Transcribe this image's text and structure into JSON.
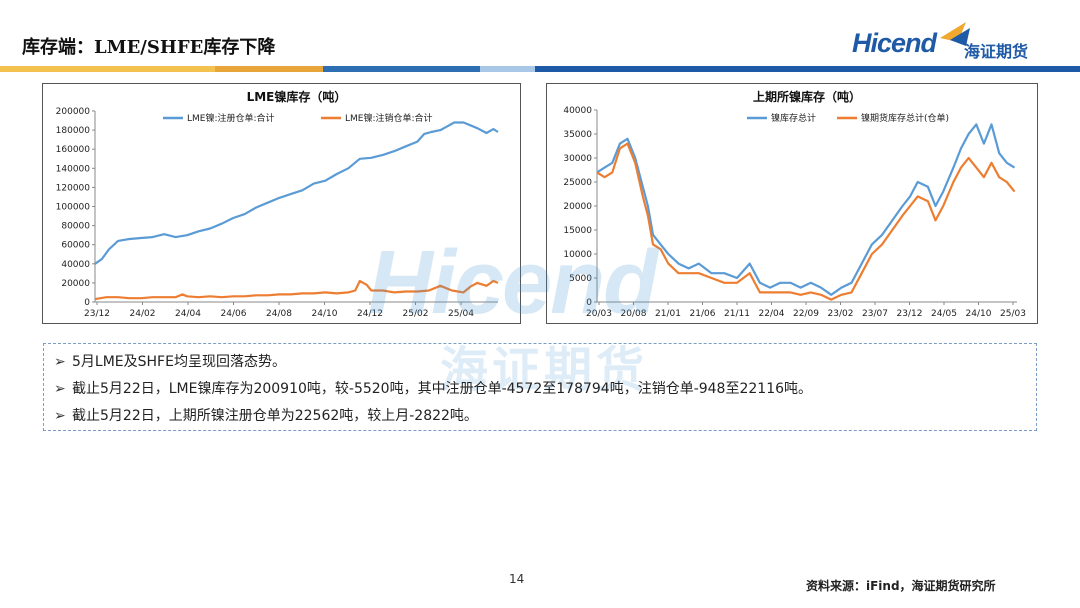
{
  "header": {
    "title": "库存端：LME/SHFE库存下降",
    "strip_colors": [
      "#f0c050",
      "#e8a53a",
      "#2e6fb4",
      "#9dbfe0",
      "#1f5aa6"
    ]
  },
  "logo": {
    "en": "Hicend",
    "cn": "海证期货",
    "color": "#1f5aa6"
  },
  "watermark": {
    "en": "Hicend",
    "cn": "海证期货"
  },
  "notes": [
    "5月LME及SHFE均呈现回落态势。",
    "截止5月22日，LME镍库存为200910吨，较-5520吨，其中注册仓单-4572至178794吨，注销仓单-948至22116吨。",
    "截止5月22日，上期所镍注册仓单为22562吨，较上月-2822吨。"
  ],
  "footer": {
    "page": "14",
    "source": "资料来源：iFind，海证期货研究所"
  },
  "chart_data": [
    {
      "type": "line",
      "title": "LME镍库存（吨）",
      "ylim": [
        0,
        200000
      ],
      "yticks": [
        "0",
        "20000",
        "40000",
        "60000",
        "80000",
        "100000",
        "120000",
        "140000",
        "160000",
        "180000",
        "200000"
      ],
      "xticks": [
        "23/12",
        "24/02",
        "24/04",
        "24/06",
        "24/08",
        "24/10",
        "24/12",
        "25/02",
        "25/04"
      ],
      "xrange": [
        0,
        17.5
      ],
      "legend": "top",
      "series": [
        {
          "name": "LME镍:注册仓单:合计",
          "color": "#5b9bd5",
          "x": [
            0,
            0.3,
            0.6,
            1.0,
            1.5,
            2.0,
            2.5,
            3.0,
            3.5,
            4.0,
            4.5,
            5.0,
            5.5,
            6.0,
            6.5,
            7.0,
            7.5,
            8.0,
            8.5,
            9.0,
            9.5,
            10.0,
            10.5,
            11.0,
            11.5,
            12.0,
            12.5,
            13.0,
            13.5,
            14.0,
            14.3,
            14.6,
            15.0,
            15.3,
            15.6,
            16.0,
            16.3,
            16.6,
            17.0,
            17.3,
            17.5
          ],
          "y": [
            40000,
            45000,
            55000,
            64000,
            66000,
            67000,
            68000,
            71000,
            68000,
            70000,
            74000,
            77000,
            82000,
            88000,
            92000,
            99000,
            104000,
            109000,
            113000,
            117000,
            124000,
            127000,
            134000,
            140000,
            150000,
            151000,
            154000,
            158000,
            163000,
            168000,
            176000,
            178000,
            180000,
            184000,
            188000,
            188000,
            185000,
            182000,
            177000,
            181000,
            178000
          ]
        },
        {
          "name": "LME镍:注销仓单:合计",
          "color": "#ed7d31",
          "x": [
            0,
            0.5,
            1.0,
            1.5,
            2.0,
            2.5,
            3.0,
            3.5,
            3.8,
            4.0,
            4.5,
            5.0,
            5.5,
            6.0,
            6.5,
            7.0,
            7.5,
            8.0,
            8.5,
            9.0,
            9.5,
            10.0,
            10.5,
            11.0,
            11.3,
            11.5,
            11.8,
            12.0,
            12.5,
            13.0,
            13.5,
            14.0,
            14.5,
            15.0,
            15.5,
            16.0,
            16.3,
            16.6,
            17.0,
            17.3,
            17.5
          ],
          "y": [
            3000,
            5000,
            5000,
            4000,
            4000,
            5000,
            5000,
            5000,
            8000,
            6000,
            5000,
            6000,
            5000,
            6000,
            6000,
            7000,
            7000,
            8000,
            8000,
            9000,
            9000,
            10000,
            9000,
            10000,
            12000,
            22000,
            18000,
            12000,
            12000,
            10000,
            11000,
            11000,
            12000,
            17000,
            12000,
            10000,
            16000,
            20000,
            17000,
            22000,
            20000
          ]
        }
      ]
    },
    {
      "type": "line",
      "title": "上期所镍库存（吨）",
      "ylim": [
        0,
        40000
      ],
      "yticks": [
        "0",
        "5000",
        "10000",
        "15000",
        "20000",
        "25000",
        "30000",
        "35000",
        "40000"
      ],
      "xticks": [
        "20/03",
        "20/08",
        "21/01",
        "21/06",
        "21/11",
        "22/04",
        "22/09",
        "23/02",
        "23/07",
        "23/12",
        "24/05",
        "24/10",
        "25/03"
      ],
      "xrange": [
        0,
        16.5
      ],
      "legend": "top",
      "series": [
        {
          "name": "镍库存总计",
          "color": "#5b9bd5",
          "x": [
            0,
            0.3,
            0.6,
            0.9,
            1.2,
            1.5,
            1.8,
            2.0,
            2.2,
            2.5,
            2.8,
            3.2,
            3.6,
            4.0,
            4.5,
            5.0,
            5.5,
            6.0,
            6.4,
            6.8,
            7.2,
            7.6,
            8.0,
            8.4,
            8.8,
            9.2,
            9.6,
            10.0,
            10.4,
            10.8,
            11.2,
            11.6,
            12.0,
            12.3,
            12.6,
            13.0,
            13.3,
            13.6,
            14.0,
            14.3,
            14.6,
            14.9,
            15.2,
            15.5,
            15.8,
            16.1,
            16.4
          ],
          "y": [
            27000,
            28000,
            29000,
            33000,
            34000,
            30000,
            24000,
            20000,
            14000,
            12000,
            10000,
            8000,
            7000,
            8000,
            6000,
            6000,
            5000,
            8000,
            4000,
            3000,
            4000,
            4000,
            3000,
            4000,
            3000,
            1500,
            3000,
            4000,
            8000,
            12000,
            14000,
            17000,
            20000,
            22000,
            25000,
            24000,
            20000,
            23000,
            28000,
            32000,
            35000,
            37000,
            33000,
            37000,
            31000,
            29000,
            28000
          ]
        },
        {
          "name": "镍期货库存总计(仓单)",
          "color": "#ed7d31",
          "x": [
            0,
            0.3,
            0.6,
            0.9,
            1.2,
            1.5,
            1.8,
            2.0,
            2.2,
            2.5,
            2.8,
            3.2,
            3.6,
            4.0,
            4.5,
            5.0,
            5.5,
            6.0,
            6.4,
            6.8,
            7.2,
            7.6,
            8.0,
            8.4,
            8.8,
            9.2,
            9.6,
            10.0,
            10.4,
            10.8,
            11.2,
            11.6,
            12.0,
            12.3,
            12.6,
            13.0,
            13.3,
            13.6,
            14.0,
            14.3,
            14.6,
            14.9,
            15.2,
            15.5,
            15.8,
            16.1,
            16.4
          ],
          "y": [
            27000,
            26000,
            27000,
            32000,
            33000,
            29000,
            22000,
            18000,
            12000,
            11000,
            8000,
            6000,
            6000,
            6000,
            5000,
            4000,
            4000,
            6000,
            2000,
            2000,
            2000,
            2000,
            1500,
            2000,
            1500,
            500,
            1500,
            2000,
            6000,
            10000,
            12000,
            15000,
            18000,
            20000,
            22000,
            21000,
            17000,
            20000,
            25000,
            28000,
            30000,
            28000,
            26000,
            29000,
            26000,
            25000,
            23000
          ]
        }
      ]
    }
  ]
}
